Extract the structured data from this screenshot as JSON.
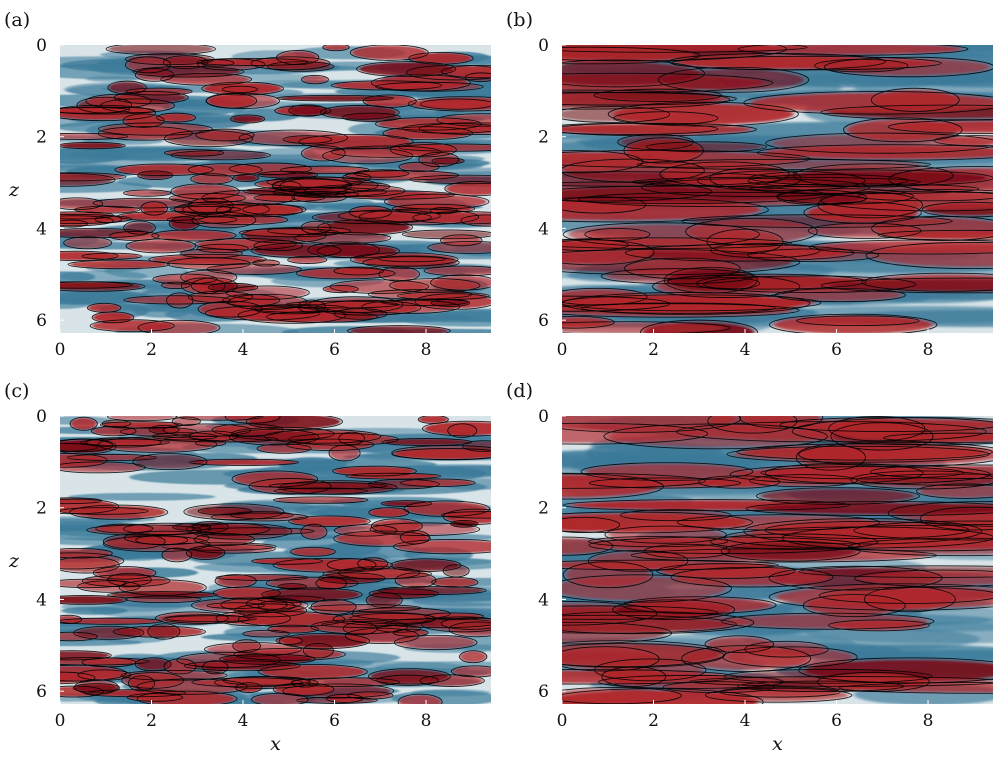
{
  "figure": {
    "panel_labels": [
      "(a)",
      "(b)",
      "(c)",
      "(d)"
    ]
  },
  "colors": {
    "blue": "#3b7a99",
    "pale": "#d8e4e8",
    "red": "#b0282c",
    "dark_red": "#7a0d18",
    "contour": "#000000"
  },
  "chart_data": [
    {
      "type": "heatmap",
      "panel": "(a)",
      "xlabel": "",
      "ylabel": "z",
      "xlim": [
        0,
        9.42
      ],
      "ylim": [
        6.28,
        0
      ],
      "x_ticks": [
        0,
        2,
        4,
        6,
        8
      ],
      "y_ticks": [
        0,
        2,
        4,
        6
      ],
      "streak_character": "fine"
    },
    {
      "type": "heatmap",
      "panel": "(b)",
      "xlabel": "",
      "ylabel": "",
      "xlim": [
        0,
        9.42
      ],
      "ylim": [
        6.28,
        0
      ],
      "x_ticks": [
        0,
        2,
        4,
        6,
        8
      ],
      "y_ticks": [
        0,
        2,
        4,
        6
      ],
      "streak_character": "coarse"
    },
    {
      "type": "heatmap",
      "panel": "(c)",
      "xlabel": "x",
      "ylabel": "z",
      "xlim": [
        0,
        9.42
      ],
      "ylim": [
        6.28,
        0
      ],
      "x_ticks": [
        0,
        2,
        4,
        6,
        8
      ],
      "y_ticks": [
        0,
        2,
        4,
        6
      ],
      "streak_character": "fine"
    },
    {
      "type": "heatmap",
      "panel": "(d)",
      "xlabel": "x",
      "ylabel": "",
      "xlim": [
        0,
        9.42
      ],
      "ylim": [
        6.28,
        0
      ],
      "x_ticks": [
        0,
        2,
        4,
        6,
        8
      ],
      "y_ticks": [
        0,
        2,
        4,
        6
      ],
      "streak_character": "coarse"
    }
  ]
}
